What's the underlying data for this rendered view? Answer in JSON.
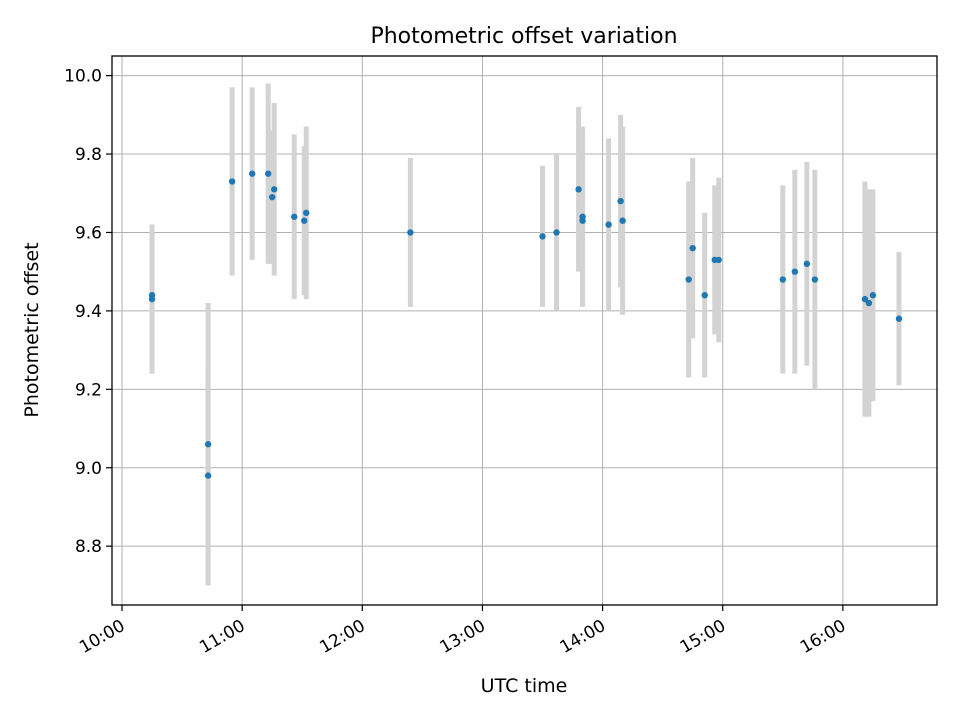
{
  "chart_data": {
    "type": "scatter",
    "title": "Photometric offset variation",
    "xlabel": "UTC time",
    "ylabel": "Photometric offset",
    "x_ticks": [
      "10:00",
      "11:00",
      "12:00",
      "13:00",
      "14:00",
      "15:00",
      "16:00"
    ],
    "y_ticks": [
      "8.8",
      "9.0",
      "9.2",
      "9.4",
      "9.6",
      "9.8",
      "10.0"
    ],
    "xlim": [
      "09:55",
      "16:47"
    ],
    "ylim": [
      8.65,
      10.05
    ],
    "grid": true,
    "point_color": "#1f77b4",
    "errorbar_color": "#d3d3d3",
    "points": [
      {
        "x": "10:15",
        "y": 9.44,
        "err": 0.18
      },
      {
        "x": "10:15",
        "y": 9.43,
        "err": 0.19
      },
      {
        "x": "10:43",
        "y": 9.06,
        "err": 0.36
      },
      {
        "x": "10:43",
        "y": 8.98,
        "err": 0.28
      },
      {
        "x": "10:55",
        "y": 9.73,
        "err": 0.24
      },
      {
        "x": "11:05",
        "y": 9.75,
        "err": 0.22
      },
      {
        "x": "11:13",
        "y": 9.75,
        "err": 0.23
      },
      {
        "x": "11:15",
        "y": 9.69,
        "err": 0.17
      },
      {
        "x": "11:16",
        "y": 9.71,
        "err": 0.22
      },
      {
        "x": "11:26",
        "y": 9.64,
        "err": 0.21
      },
      {
        "x": "11:31",
        "y": 9.63,
        "err": 0.19
      },
      {
        "x": "11:32",
        "y": 9.65,
        "err": 0.22
      },
      {
        "x": "12:24",
        "y": 9.6,
        "err": 0.19
      },
      {
        "x": "13:30",
        "y": 9.59,
        "err": 0.18
      },
      {
        "x": "13:37",
        "y": 9.6,
        "err": 0.2
      },
      {
        "x": "13:48",
        "y": 9.71,
        "err": 0.21
      },
      {
        "x": "13:50",
        "y": 9.64,
        "err": 0.23
      },
      {
        "x": "13:50",
        "y": 9.63,
        "err": 0.22
      },
      {
        "x": "14:03",
        "y": 9.62,
        "err": 0.22
      },
      {
        "x": "14:09",
        "y": 9.68,
        "err": 0.22
      },
      {
        "x": "14:10",
        "y": 9.63,
        "err": 0.24
      },
      {
        "x": "14:43",
        "y": 9.48,
        "err": 0.25
      },
      {
        "x": "14:45",
        "y": 9.56,
        "err": 0.23
      },
      {
        "x": "14:51",
        "y": 9.44,
        "err": 0.21
      },
      {
        "x": "14:56",
        "y": 9.53,
        "err": 0.19
      },
      {
        "x": "14:58",
        "y": 9.53,
        "err": 0.21
      },
      {
        "x": "15:30",
        "y": 9.48,
        "err": 0.24
      },
      {
        "x": "15:36",
        "y": 9.5,
        "err": 0.26
      },
      {
        "x": "15:42",
        "y": 9.52,
        "err": 0.26
      },
      {
        "x": "15:46",
        "y": 9.48,
        "err": 0.28
      },
      {
        "x": "16:11",
        "y": 9.43,
        "err": 0.3
      },
      {
        "x": "16:13",
        "y": 9.42,
        "err": 0.29
      },
      {
        "x": "16:15",
        "y": 9.44,
        "err": 0.27
      },
      {
        "x": "16:28",
        "y": 9.38,
        "err": 0.17
      }
    ]
  }
}
